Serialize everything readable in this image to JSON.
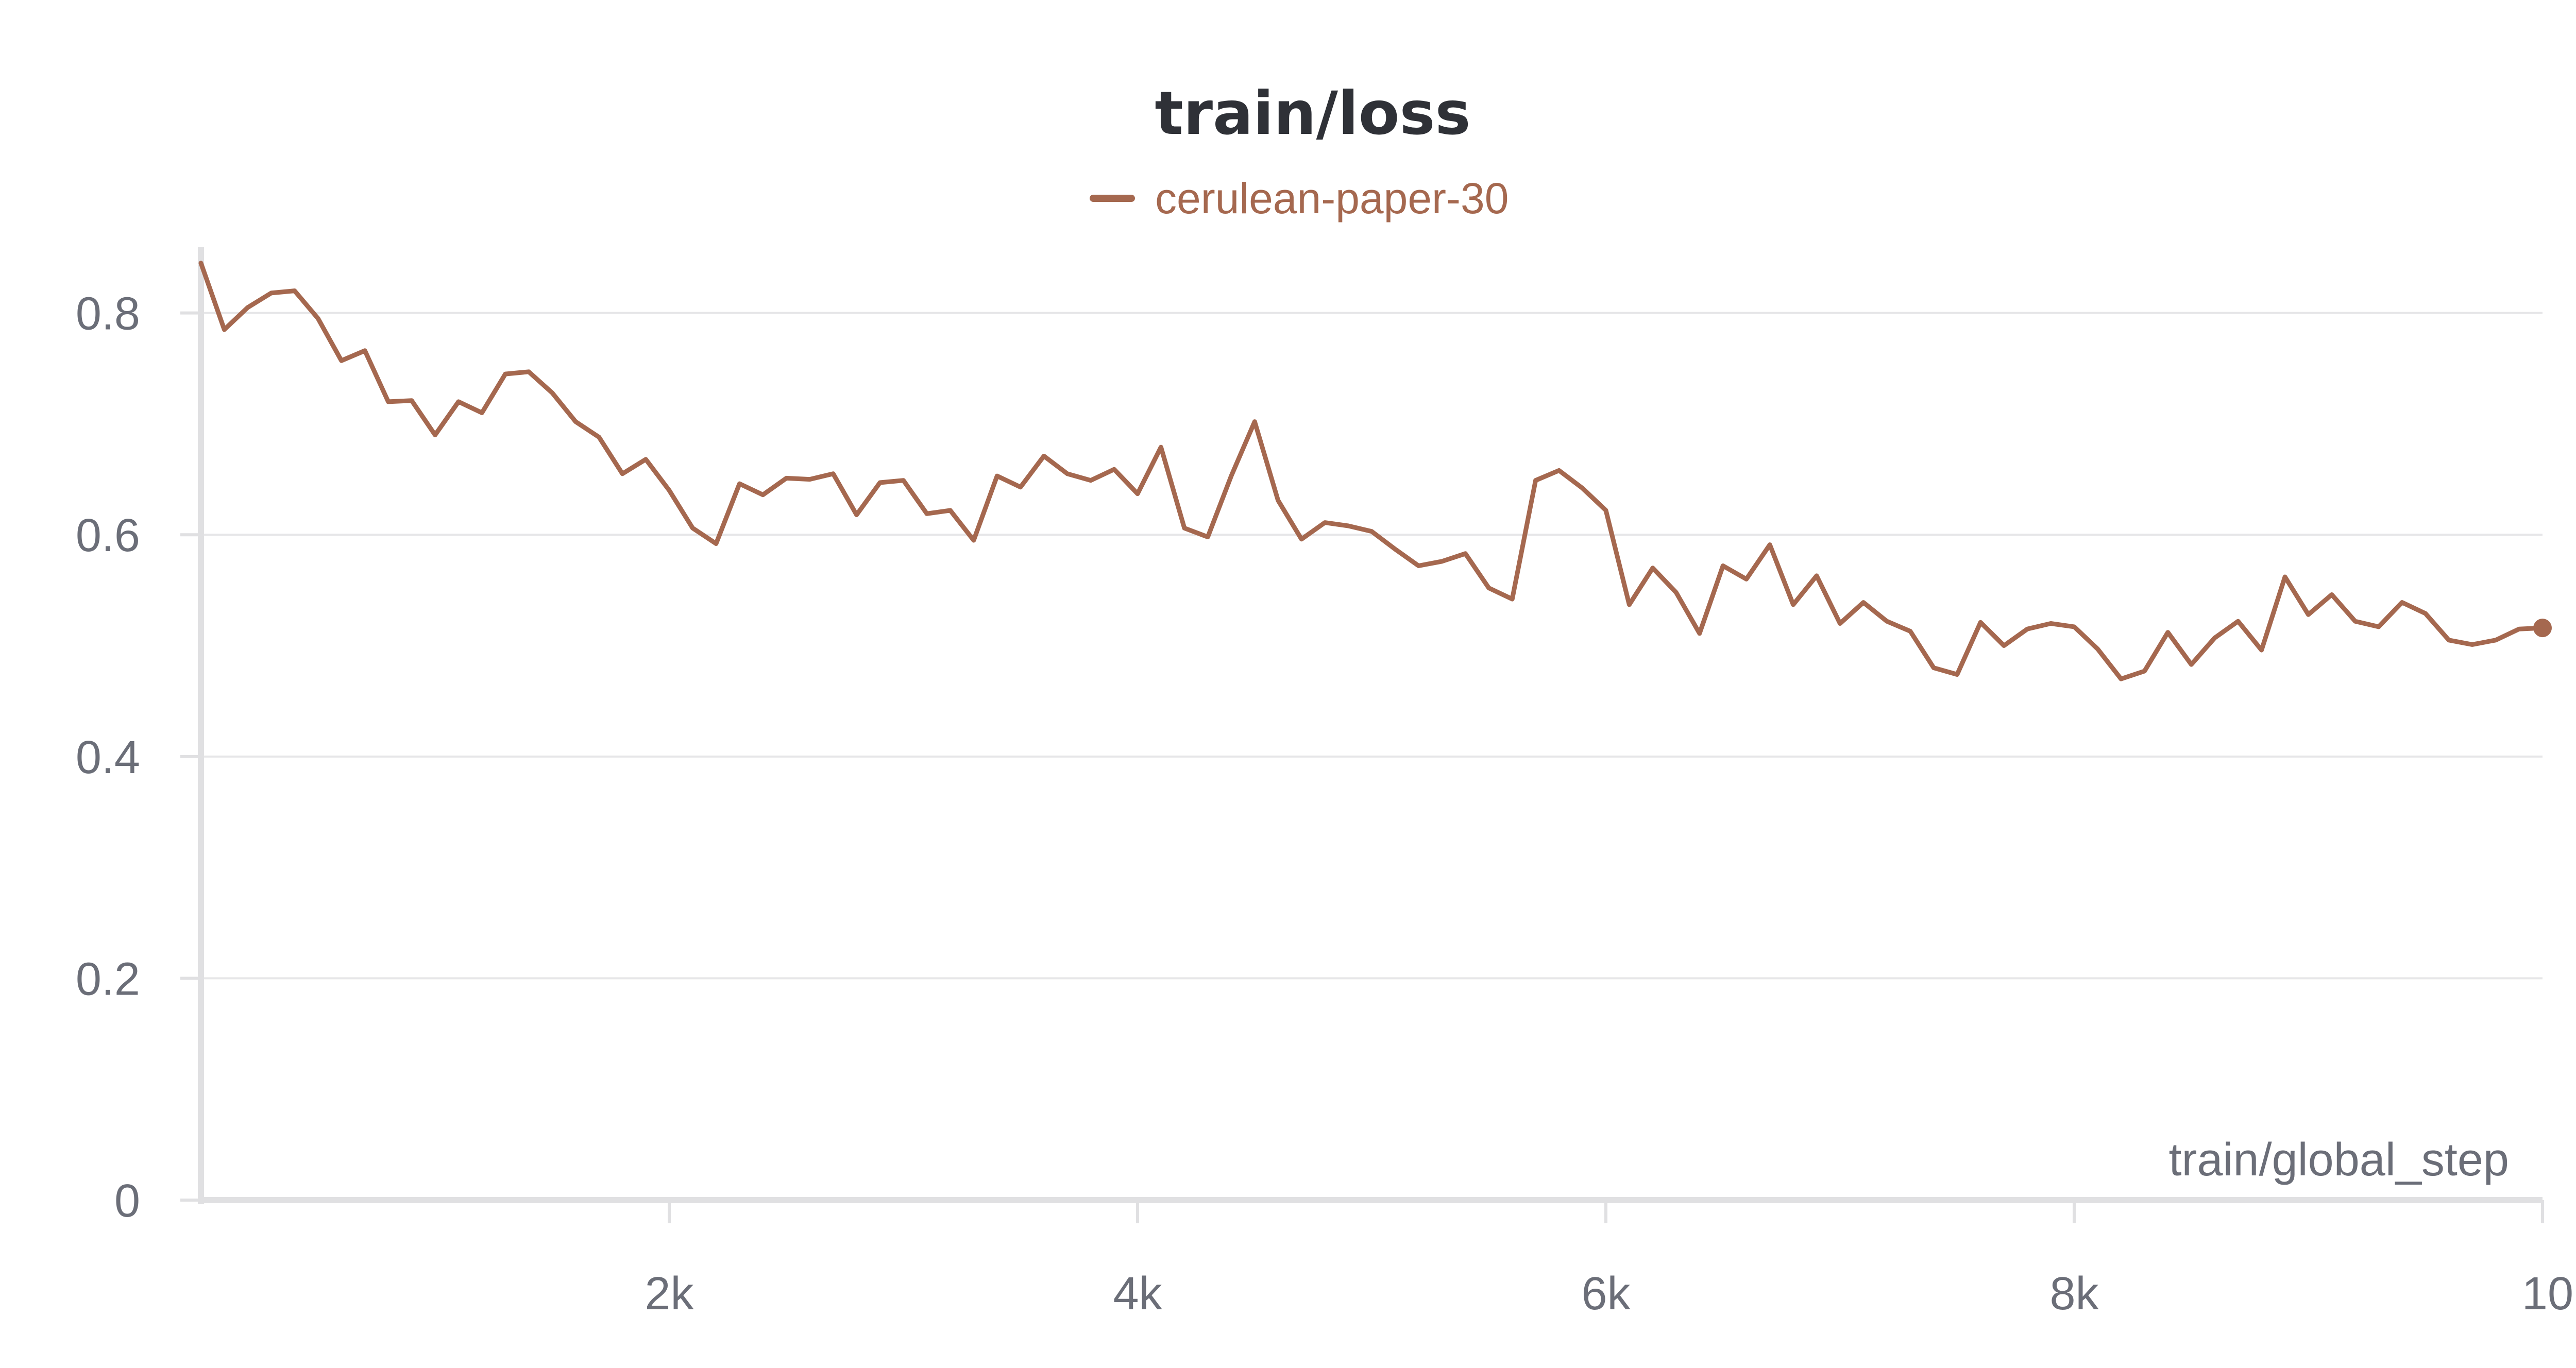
{
  "chart_data": {
    "type": "line",
    "title": "train/loss",
    "xlabel": "train/global_step",
    "ylabel": "",
    "xlim": [
      0,
      10000
    ],
    "ylim": [
      0,
      0.85
    ],
    "x_ticks": [
      {
        "value": 2000,
        "label": "2k"
      },
      {
        "value": 4000,
        "label": "4k"
      },
      {
        "value": 6000,
        "label": "6k"
      },
      {
        "value": 8000,
        "label": "8k"
      },
      {
        "value": 10000,
        "label": "10k"
      }
    ],
    "y_ticks": [
      {
        "value": 0,
        "label": "0"
      },
      {
        "value": 0.2,
        "label": "0.2"
      },
      {
        "value": 0.4,
        "label": "0.4"
      },
      {
        "value": 0.6,
        "label": "0.6"
      },
      {
        "value": 0.8,
        "label": "0.8"
      }
    ],
    "grid": true,
    "legend_position": "top-center",
    "series": [
      {
        "name": "cerulean-paper-30",
        "color": "#a5684f",
        "x": [
          0,
          100,
          200,
          300,
          400,
          500,
          600,
          700,
          800,
          900,
          1000,
          1100,
          1200,
          1300,
          1400,
          1500,
          1600,
          1700,
          1800,
          1900,
          2000,
          2100,
          2200,
          2300,
          2400,
          2500,
          2600,
          2700,
          2800,
          2900,
          3000,
          3100,
          3200,
          3300,
          3400,
          3500,
          3600,
          3700,
          3800,
          3900,
          4000,
          4100,
          4200,
          4300,
          4400,
          4500,
          4600,
          4700,
          4800,
          4900,
          5000,
          5100,
          5200,
          5300,
          5400,
          5500,
          5600,
          5700,
          5800,
          5900,
          6000,
          6100,
          6200,
          6300,
          6400,
          6500,
          6600,
          6700,
          6800,
          6900,
          7000,
          7100,
          7200,
          7300,
          7400,
          7500,
          7600,
          7700,
          7800,
          7900,
          8000,
          8100,
          8200,
          8300,
          8400,
          8500,
          8600,
          8700,
          8800,
          8900,
          9000,
          9100,
          9200,
          9300,
          9400,
          9500,
          9600,
          9700,
          9800,
          9900,
          10000
        ],
        "values": [
          0.845,
          0.785,
          0.805,
          0.818,
          0.82,
          0.795,
          0.757,
          0.766,
          0.72,
          0.721,
          0.69,
          0.72,
          0.71,
          0.745,
          0.747,
          0.728,
          0.702,
          0.688,
          0.655,
          0.668,
          0.64,
          0.606,
          0.592,
          0.646,
          0.636,
          0.651,
          0.65,
          0.655,
          0.618,
          0.647,
          0.649,
          0.619,
          0.622,
          0.595,
          0.653,
          0.643,
          0.671,
          0.655,
          0.649,
          0.659,
          0.637,
          0.679,
          0.606,
          0.598,
          0.653,
          0.702,
          0.631,
          0.596,
          0.611,
          0.608,
          0.603,
          0.587,
          0.572,
          0.576,
          0.583,
          0.552,
          0.542,
          0.649,
          0.658,
          0.642,
          0.622,
          0.537,
          0.57,
          0.548,
          0.511,
          0.572,
          0.56,
          0.591,
          0.537,
          0.563,
          0.52,
          0.539,
          0.522,
          0.513,
          0.48,
          0.474,
          0.521,
          0.5,
          0.515,
          0.52,
          0.517,
          0.497,
          0.47,
          0.477,
          0.512,
          0.483,
          0.507,
          0.522,
          0.496,
          0.562,
          0.528,
          0.546,
          0.522,
          0.517,
          0.539,
          0.529,
          0.505,
          0.501,
          0.505,
          0.515,
          0.516
        ]
      }
    ]
  }
}
